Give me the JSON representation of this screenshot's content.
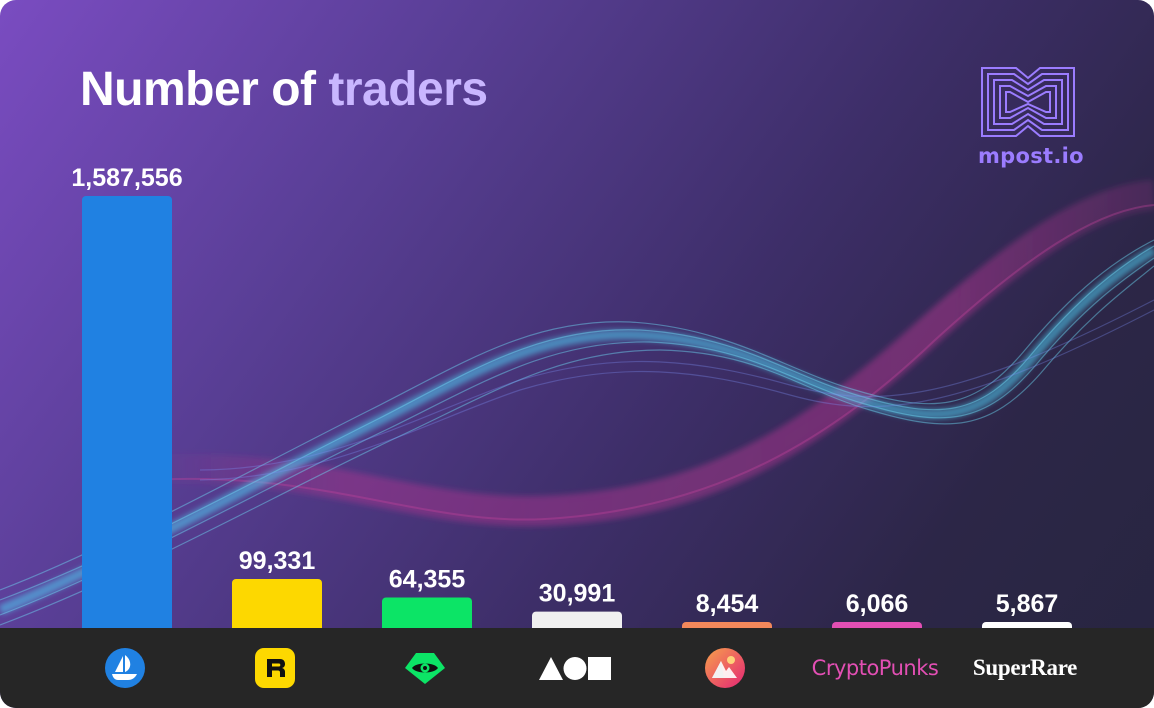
{
  "title": {
    "part1": "Number of",
    "part2": "traders"
  },
  "brand": {
    "name": "mpost.io"
  },
  "colors": {
    "opensea": "#2081e2",
    "rarible": "#fdd800",
    "looksrare": "#0ce466",
    "foundation": "#f0f0f0",
    "magiceden": "#f3885b",
    "cryptopunks": "#e34fb4",
    "superrare": "#ffffff",
    "title_accent": "#c9b6ff",
    "brand": "#9b7cff"
  },
  "chart_data": {
    "type": "bar",
    "title": "Number of traders",
    "categories": [
      "OpenSea",
      "Rarible",
      "LooksRare",
      "Foundation",
      "Magic Eden",
      "CryptoPunks",
      "SuperRare"
    ],
    "values": [
      1587556,
      99331,
      64355,
      30991,
      8454,
      6066,
      5867
    ],
    "value_labels": [
      "1,587,556",
      "99,331",
      "64,355",
      "30,991",
      "8,454",
      "6,066",
      "5,867"
    ],
    "bar_colors": [
      "#2081e2",
      "#fdd800",
      "#0ce466",
      "#f0f0f0",
      "#f3885b",
      "#e34fb4",
      "#ffffff"
    ],
    "grid": false,
    "legend": "none"
  },
  "footer": {
    "icons": [
      {
        "name": "opensea-logo"
      },
      {
        "name": "rarible-logo"
      },
      {
        "name": "looksrare-logo"
      },
      {
        "name": "foundation-logo"
      },
      {
        "name": "magic-eden-logo"
      },
      {
        "name": "cryptopunks-logo",
        "text": "CryptoPunks"
      },
      {
        "name": "superrare-logo",
        "text": "SuperRare"
      }
    ]
  }
}
